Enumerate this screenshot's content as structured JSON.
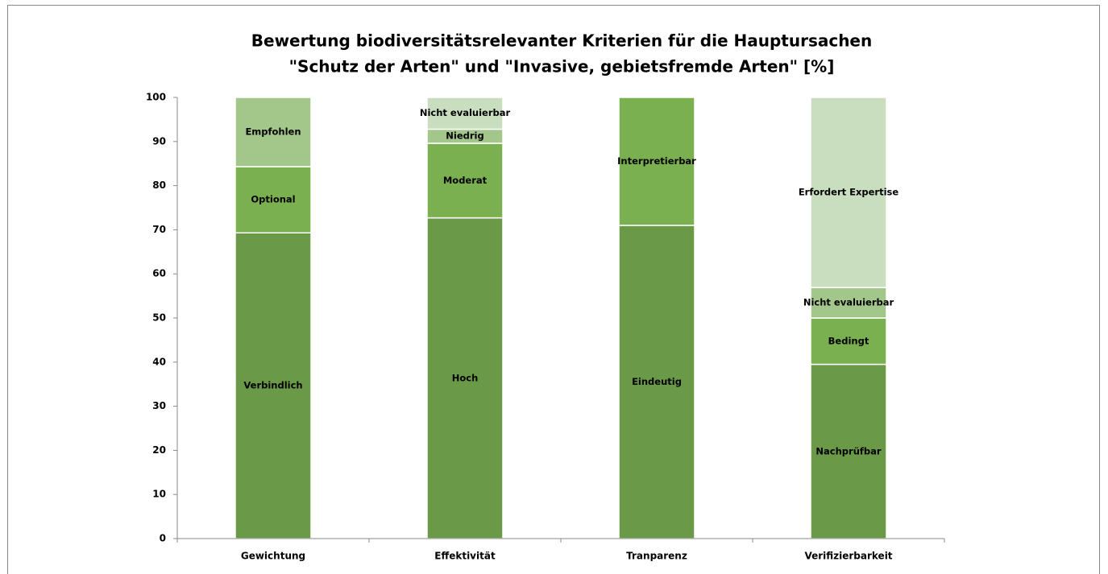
{
  "chart_data": {
    "type": "stacked_bar",
    "title": [
      "Bewertung biodiversitätsrelevanter Kriterien für die Hauptursachen",
      "\"Schutz der Arten\" und \"Invasive, gebietsfremde Arten\" [%]"
    ],
    "ylim": [
      0,
      100
    ],
    "yticks": [
      0,
      10,
      20,
      30,
      40,
      50,
      60,
      70,
      80,
      90,
      100
    ],
    "bars": [
      {
        "category": "Gewichtung",
        "segments": [
          {
            "name": "Verbindlich",
            "value": 69.3,
            "color": "#6a9a48"
          },
          {
            "name": "Optional",
            "value": 15,
            "color": "#7bb050"
          },
          {
            "name": "Empfohlen",
            "value": 15.7,
            "color": "#a3c68a"
          }
        ]
      },
      {
        "category": "Effektivität",
        "segments": [
          {
            "name": "Hoch",
            "value": 72.7,
            "color": "#6a9a48"
          },
          {
            "name": "Moderat",
            "value": 16.9,
            "color": "#7bb050"
          },
          {
            "name": "Niedrig",
            "value": 3.2,
            "color": "#a3c68a"
          },
          {
            "name": "Nicht evaluierbar",
            "value": 7.2,
            "color": "#c9ddbf"
          }
        ]
      },
      {
        "category": "Tranparenz",
        "segments": [
          {
            "name": "Eindeutig",
            "value": 71,
            "color": "#6a9a48"
          },
          {
            "name": "Interpretierbar",
            "value": 29,
            "color": "#7bb050"
          }
        ]
      },
      {
        "category": "Verifizierbarkeit",
        "segments": [
          {
            "name": "Nachprüfbar",
            "value": 39.5,
            "color": "#6a9a48"
          },
          {
            "name": "Bedingt",
            "value": 10.5,
            "color": "#7bb050"
          },
          {
            "name": "Nicht evaluierbar",
            "value": 6.9,
            "color": "#a3c68a"
          },
          {
            "name": "Erfordert Expertise",
            "value": 43.1,
            "color": "#c9ddbf"
          }
        ]
      }
    ]
  }
}
